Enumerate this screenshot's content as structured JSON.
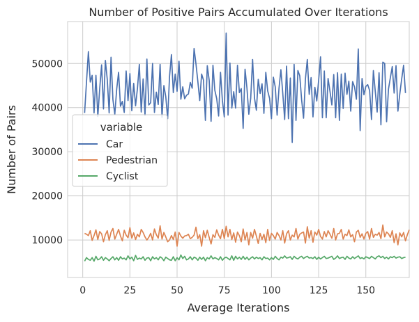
{
  "chart_data": {
    "type": "line",
    "title": "Number of Positive Pairs Accumulated Over Iterations",
    "xlabel": "Average Iterations",
    "ylabel": "Number of Pairs",
    "xlim": [
      -8,
      173
    ],
    "ylim": [
      1500,
      59500
    ],
    "xticks": [
      0,
      25,
      50,
      75,
      100,
      125,
      150
    ],
    "yticks": [
      10000,
      20000,
      30000,
      40000,
      50000
    ],
    "grid": true,
    "legend": {
      "title": "variable",
      "placement": "center-left"
    },
    "series": [
      {
        "name": "Car",
        "color": "#4c72b0",
        "values": [
          38800,
          45800,
          52700,
          45800,
          47300,
          38800,
          47300,
          38000,
          44300,
          49700,
          39700,
          50700,
          46400,
          38800,
          51400,
          41800,
          38500,
          44200,
          48000,
          40300,
          41400,
          38900,
          48300,
          41600,
          47700,
          39300,
          45500,
          40400,
          44400,
          49800,
          39000,
          46500,
          38200,
          51000,
          40600,
          41100,
          50000,
          38900,
          43500,
          40700,
          49800,
          37800,
          45000,
          42500,
          37500,
          47100,
          52000,
          43400,
          47600,
          43700,
          50500,
          41900,
          44700,
          42000,
          42800,
          43100,
          45700,
          44400,
          53400,
          49900,
          45900,
          41600,
          47600,
          46200,
          37100,
          49500,
          46200,
          36900,
          49600,
          43900,
          42000,
          38100,
          48000,
          41600,
          37900,
          56900,
          38300,
          50100,
          39900,
          43600,
          39900,
          49600,
          43400,
          44300,
          35300,
          48700,
          44500,
          38500,
          42100,
          50900,
          42200,
          39400,
          46400,
          43200,
          45400,
          38700,
          48000,
          43800,
          42100,
          37500,
          46900,
          44700,
          38300,
          44400,
          48600,
          43200,
          37300,
          49400,
          37500,
          46700,
          32100,
          49800,
          37100,
          48400,
          47200,
          41700,
          37600,
          46500,
          50900,
          43000,
          46800,
          37900,
          44600,
          41500,
          46200,
          51500,
          37700,
          48300,
          37700,
          46600,
          43700,
          40600,
          47500,
          37700,
          47900,
          37100,
          47600,
          39800,
          47800,
          43000,
          46000,
          39200,
          45900,
          44700,
          41900,
          53300,
          34800,
          46600,
          42900,
          44800,
          45200,
          43900,
          37300,
          48400,
          43700,
          39000,
          47900,
          36100,
          50300,
          50000,
          36800,
          44200,
          46800,
          49300,
          43300,
          49500,
          39200,
          43100,
          46500,
          49600,
          43300
        ]
      },
      {
        "name": "Pedestrian",
        "color": "#dd8452",
        "values": [
          11500,
          11300,
          11000,
          12100,
          9900,
          11000,
          12300,
          10100,
          11900,
          11400,
          9600,
          11200,
          12100,
          9900,
          11800,
          12600,
          10200,
          11300,
          12400,
          10900,
          9800,
          12200,
          11100,
          10500,
          12800,
          10400,
          11600,
          10100,
          11300,
          10700,
          12400,
          11700,
          10700,
          10000,
          10600,
          11500,
          10000,
          12500,
          11200,
          10400,
          13200,
          10200,
          11700,
          10700,
          9600,
          10000,
          11000,
          10100,
          11800,
          8600,
          11700,
          10900,
          10400,
          10900,
          11000,
          11300,
          10300,
          10600,
          11100,
          12900,
          10300,
          11200,
          8600,
          12100,
          10500,
          12200,
          10600,
          9100,
          11200,
          10600,
          12300,
          11100,
          10300,
          12400,
          10300,
          13100,
          10700,
          12400,
          10100,
          11600,
          9500,
          11800,
          11000,
          9600,
          12500,
          10000,
          11700,
          8900,
          11700,
          10400,
          12400,
          10900,
          9200,
          11500,
          10100,
          11300,
          9400,
          12400,
          9900,
          11500,
          11000,
          10200,
          11700,
          11000,
          10000,
          12100,
          9300,
          11400,
          12100,
          10000,
          11100,
          10700,
          12600,
          10200,
          11300,
          11600,
          11800,
          9300,
          13000,
          10400,
          12100,
          9500,
          11800,
          11100,
          12400,
          10800,
          10200,
          11900,
          10700,
          12100,
          11300,
          10400,
          12600,
          10000,
          11400,
          11500,
          12400,
          10200,
          11300,
          11000,
          12300,
          10700,
          11200,
          9600,
          11800,
          12200,
          10600,
          11400,
          10200,
          11500,
          11900,
          10200,
          12600,
          10600,
          11300,
          11100,
          11700,
          10300,
          13400,
          10700,
          11800,
          11400,
          10600,
          12100,
          9400,
          11400,
          8900,
          11600,
          10700,
          11700,
          9800,
          11200,
          12300
        ]
      },
      {
        "name": "Cyclist",
        "color": "#55a868",
        "values": [
          5200,
          6000,
          5600,
          5400,
          6000,
          5200,
          6300,
          5500,
          5700,
          6200,
          5400,
          6000,
          5700,
          5300,
          5800,
          6200,
          5500,
          6000,
          5400,
          6200,
          5700,
          5900,
          5500,
          6400,
          5700,
          6100,
          5300,
          6500,
          5600,
          5900,
          5700,
          6200,
          5400,
          5900,
          6000,
          5300,
          6200,
          5700,
          6000,
          5500,
          6200,
          5900,
          5300,
          6100,
          5800,
          5500,
          5400,
          6200,
          5300,
          6000,
          5500,
          6600,
          5800,
          6300,
          5500,
          5700,
          6200,
          5500,
          6100,
          5900,
          5400,
          6100,
          5600,
          6100,
          5300,
          6000,
          5700,
          6400,
          5700,
          6000,
          5800,
          5500,
          6200,
          5400,
          5900,
          6100,
          5800,
          5500,
          6400,
          5400,
          6300,
          5700,
          6100,
          5600,
          6300,
          5600,
          6100,
          5500,
          5900,
          6200,
          5700,
          6100,
          5800,
          6000,
          5500,
          6200,
          5800,
          5900,
          5500,
          6000,
          5600,
          6300,
          5800,
          5500,
          6100,
          5900,
          6400,
          5900,
          6000,
          6200,
          5600,
          6300,
          5900,
          5700,
          6100,
          6300,
          5800,
          6100,
          6300,
          5900,
          6000,
          5800,
          6200,
          5600,
          6100,
          5700,
          6000,
          6300,
          5800,
          5900,
          6100,
          6300,
          5600,
          5900,
          6400,
          5800,
          6000,
          6100,
          5600,
          6300,
          5900,
          5700,
          6200,
          5800,
          6100,
          6400,
          5800,
          6000,
          5700,
          6200,
          6000,
          5800,
          6300,
          6000,
          5700,
          6200,
          6400,
          6000,
          6300,
          5800,
          6100,
          5700,
          6200,
          6000,
          6300,
          5900,
          6100,
          6200,
          5800,
          6000,
          6100
        ]
      }
    ]
  }
}
